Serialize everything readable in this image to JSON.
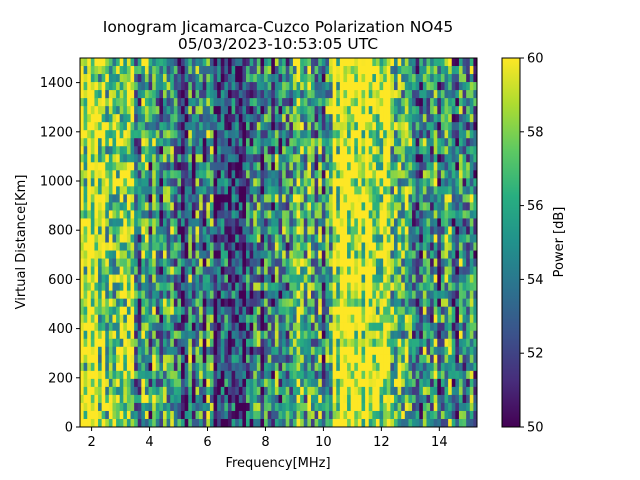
{
  "chart_data": {
    "type": "heatmap",
    "title": "Ionogram Jicamarca-Cuzco Polarization NO45",
    "subtitle": "05/03/2023-10:53:05 UTC",
    "xlabel": "Frequency[MHz]",
    "ylabel": "Virtual Distance[Km]",
    "xlim": [
      1.6,
      15.3
    ],
    "ylim": [
      0,
      1500
    ],
    "x_ticks": [
      2,
      4,
      6,
      8,
      10,
      12,
      14
    ],
    "y_ticks": [
      0,
      200,
      400,
      600,
      800,
      1000,
      1200,
      1400
    ],
    "colorbar": {
      "label": "Power [dB]",
      "range": [
        50,
        60
      ],
      "ticks": [
        50,
        52,
        54,
        56,
        58,
        60
      ],
      "colormap": "viridis"
    },
    "grid": false,
    "frequency_profile_mhz": [
      1.6,
      2.0,
      2.4,
      2.6,
      3.0,
      3.5,
      4.0,
      4.5,
      5.0,
      5.5,
      6.0,
      6.5,
      7.0,
      7.5,
      8.0,
      8.5,
      9.0,
      9.2,
      9.5,
      10.0,
      10.4,
      10.8,
      11.5,
      12.0,
      12.3,
      12.6,
      13.0,
      13.5,
      14.0,
      14.5,
      15.0,
      15.3
    ],
    "mean_power_db": [
      59.8,
      59.5,
      59.0,
      57.0,
      56.5,
      56.0,
      55.5,
      55.0,
      53.5,
      53.5,
      54.0,
      52.5,
      52.0,
      52.5,
      53.5,
      54.0,
      54.0,
      59.5,
      56.0,
      55.0,
      59.0,
      60.0,
      60.0,
      59.8,
      59.0,
      57.0,
      56.5,
      55.5,
      55.0,
      54.5,
      54.5,
      55.0
    ]
  }
}
